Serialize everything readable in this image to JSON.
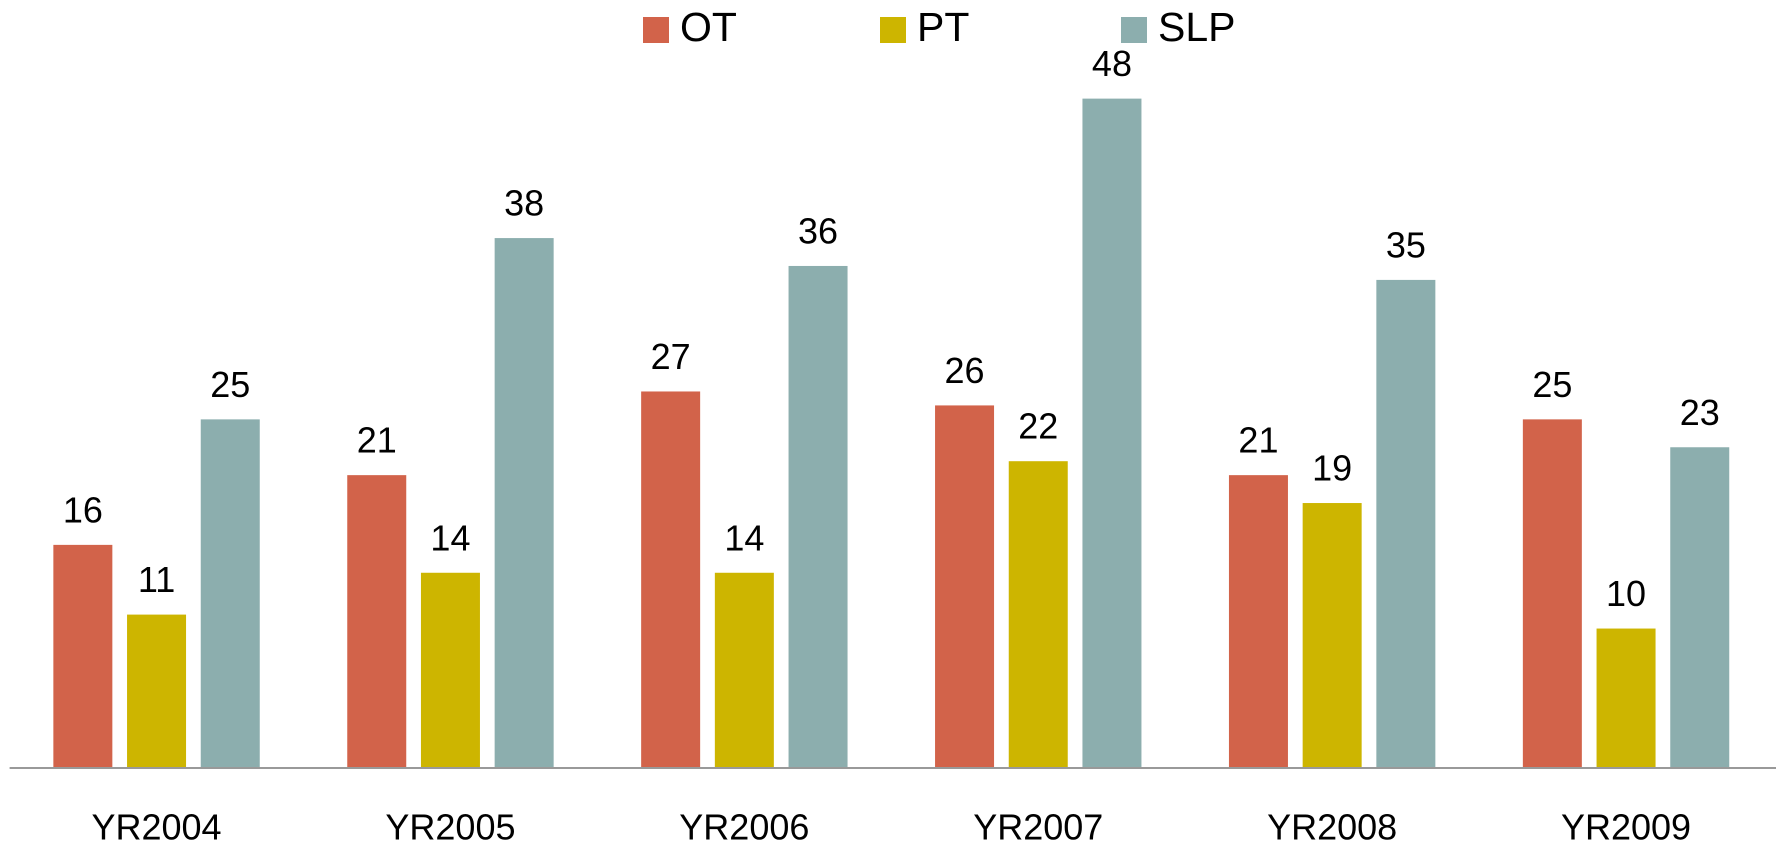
{
  "chart_data": {
    "type": "bar",
    "categories": [
      "YR2004",
      "YR2005",
      "YR2006",
      "YR2007",
      "YR2008",
      "YR2009"
    ],
    "series": [
      {
        "name": "OT",
        "color": "#d2634a",
        "values": [
          16,
          21,
          27,
          26,
          21,
          25
        ]
      },
      {
        "name": "PT",
        "color": "#cdb500",
        "values": [
          11,
          14,
          14,
          22,
          19,
          10
        ]
      },
      {
        "name": "SLP",
        "color": "#8caeae",
        "values": [
          25,
          38,
          36,
          48,
          35,
          23
        ]
      }
    ],
    "ylim": [
      0,
      55
    ],
    "legend": "top",
    "grid": false
  }
}
